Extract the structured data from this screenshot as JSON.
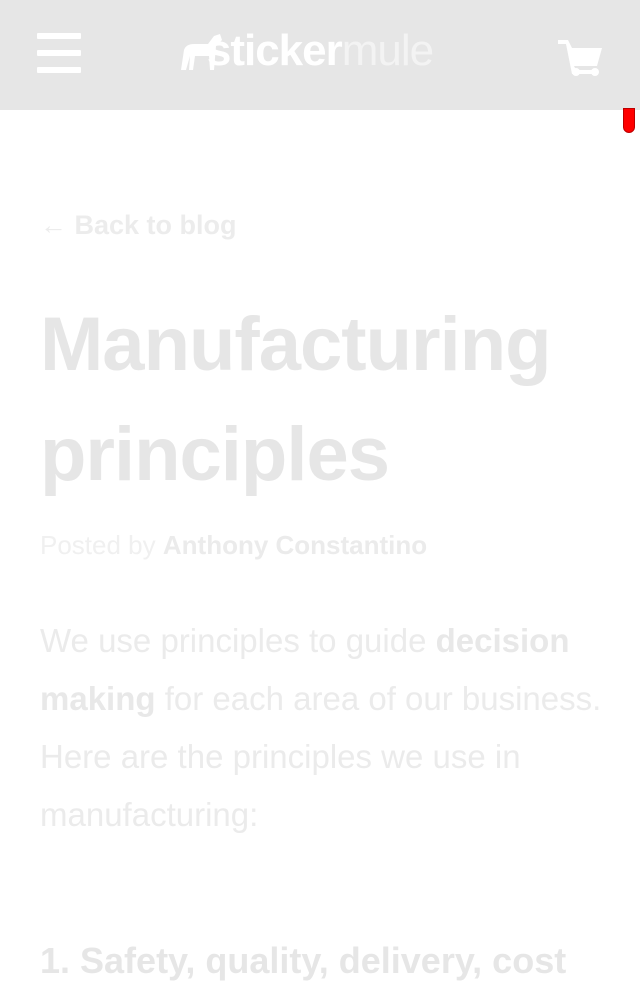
{
  "header": {
    "logo_left": "sticker",
    "logo_right": "mule"
  },
  "back_link": "← Back to blog",
  "title": "Manufacturing principles",
  "byline": {
    "prefix": "Posted by",
    "author": "Anthony Constantino"
  },
  "paragraph": {
    "start": "We use principles to guide",
    "bold": "decision making",
    "end": "for each area of our business. Here are the principles we use in manufacturing:"
  },
  "next_heading": "1. Safety, quality, delivery, cost"
}
